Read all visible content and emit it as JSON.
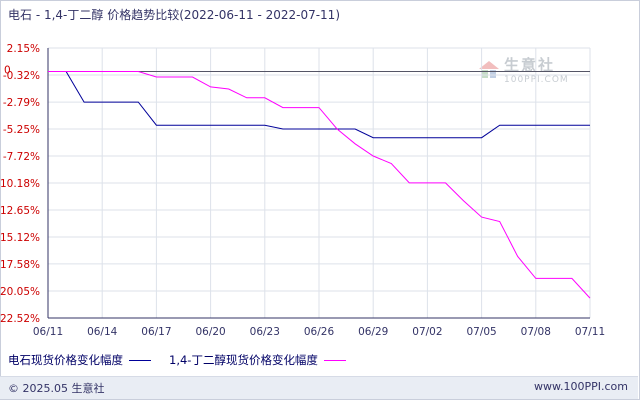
{
  "title": {
    "main": "电石 - 1,4-丁二醇 价格趋势比较",
    "range": "(2022-06-11 - 2022-07-11)"
  },
  "watermark": {
    "name": "生意社",
    "url": "100PPI.COM",
    "icon": "ppi-logo-icon"
  },
  "footer": {
    "copyright": "© 2025.05 生意社",
    "url": "www.100PPI.com"
  },
  "colors": {
    "series1": "#000099",
    "series2": "#ff00ff",
    "ytick": "#cc0000",
    "axis": "#333366",
    "grid": "#dde2ea"
  },
  "chart_data": {
    "type": "line",
    "x_ticks": [
      "06/11",
      "06/14",
      "06/17",
      "06/20",
      "06/23",
      "06/26",
      "06/29",
      "07/02",
      "07/05",
      "07/08",
      "07/11"
    ],
    "y_ticks": [
      "2.15%",
      "-0.32%",
      "-2.79%",
      "-5.25%",
      "-7.72%",
      "-10.18%",
      "-12.65%",
      "-15.12%",
      "-17.58%",
      "-20.05%",
      "-22.52%"
    ],
    "ylim": [
      -22.52,
      2.15
    ],
    "zero_label": "0",
    "grid": true,
    "legend_position": "bottom",
    "series": [
      {
        "name": "电石现货价格变化幅度",
        "color": "#000099",
        "points": [
          [
            "06/11",
            0.0
          ],
          [
            "06/12",
            0.0
          ],
          [
            "06/13",
            -2.79
          ],
          [
            "06/14",
            -2.79
          ],
          [
            "06/15",
            -2.79
          ],
          [
            "06/16",
            -2.79
          ],
          [
            "06/17",
            -4.9
          ],
          [
            "06/18",
            -4.9
          ],
          [
            "06/19",
            -4.9
          ],
          [
            "06/20",
            -4.9
          ],
          [
            "06/21",
            -4.9
          ],
          [
            "06/22",
            -4.9
          ],
          [
            "06/23",
            -4.9
          ],
          [
            "06/24",
            -5.25
          ],
          [
            "06/25",
            -5.25
          ],
          [
            "06/26",
            -5.25
          ],
          [
            "06/27",
            -5.25
          ],
          [
            "06/28",
            -5.25
          ],
          [
            "06/29",
            -6.05
          ],
          [
            "06/30",
            -6.05
          ],
          [
            "07/01",
            -6.05
          ],
          [
            "07/02",
            -6.05
          ],
          [
            "07/03",
            -6.05
          ],
          [
            "07/04",
            -6.05
          ],
          [
            "07/05",
            -6.05
          ],
          [
            "07/06",
            -4.9
          ],
          [
            "07/07",
            -4.9
          ],
          [
            "07/08",
            -4.9
          ],
          [
            "07/09",
            -4.9
          ],
          [
            "07/10",
            -4.9
          ],
          [
            "07/11",
            -4.9
          ]
        ]
      },
      {
        "name": "1,4-丁二醇现货价格变化幅度",
        "color": "#ff00ff",
        "points": [
          [
            "06/11",
            0.0
          ],
          [
            "06/12",
            0.0
          ],
          [
            "06/13",
            0.0
          ],
          [
            "06/14",
            0.0
          ],
          [
            "06/15",
            0.0
          ],
          [
            "06/16",
            0.0
          ],
          [
            "06/17",
            -0.5
          ],
          [
            "06/18",
            -0.5
          ],
          [
            "06/19",
            -0.5
          ],
          [
            "06/20",
            -1.4
          ],
          [
            "06/21",
            -1.6
          ],
          [
            "06/22",
            -2.4
          ],
          [
            "06/23",
            -2.4
          ],
          [
            "06/24",
            -3.3
          ],
          [
            "06/25",
            -3.3
          ],
          [
            "06/26",
            -3.3
          ],
          [
            "06/27",
            -5.25
          ],
          [
            "06/28",
            -6.6
          ],
          [
            "06/29",
            -7.72
          ],
          [
            "06/30",
            -8.4
          ],
          [
            "07/01",
            -10.18
          ],
          [
            "07/02",
            -10.18
          ],
          [
            "07/03",
            -10.18
          ],
          [
            "07/04",
            -11.8
          ],
          [
            "07/05",
            -13.3
          ],
          [
            "07/06",
            -13.7
          ],
          [
            "07/07",
            -16.9
          ],
          [
            "07/08",
            -18.9
          ],
          [
            "07/09",
            -18.9
          ],
          [
            "07/10",
            -18.9
          ],
          [
            "07/11",
            -20.7
          ]
        ]
      }
    ]
  }
}
